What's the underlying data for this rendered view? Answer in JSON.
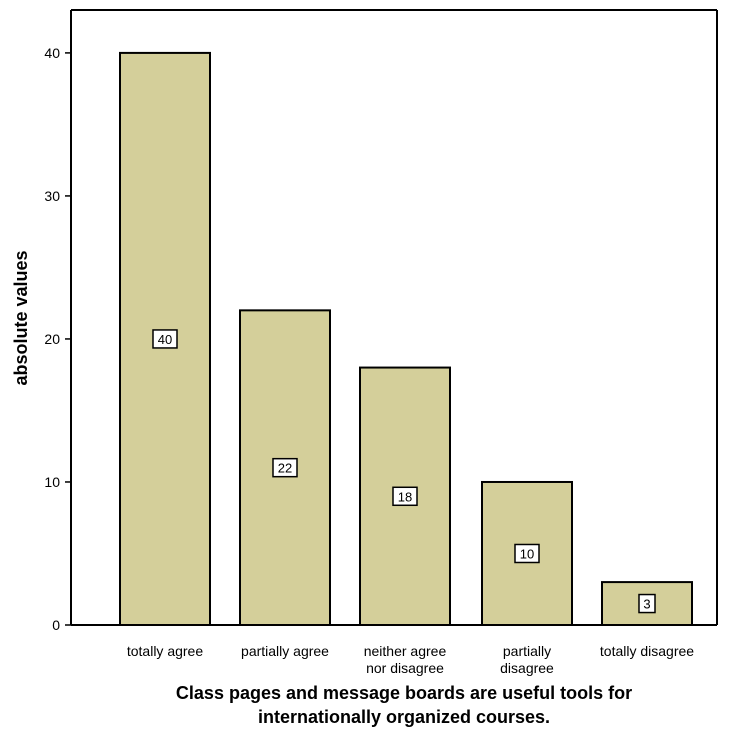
{
  "chart_data": {
    "type": "bar",
    "title": "",
    "xlabel": "Class pages and message boards are useful tools for internationally organized courses.",
    "ylabel": "absolute values",
    "categories": [
      "totally agree",
      "partially agree",
      "neither agree nor disagree",
      "partially disagree",
      "totally disagree"
    ],
    "values": [
      40,
      22,
      18,
      10,
      3
    ],
    "data_labels": [
      "40",
      "22",
      "18",
      "10",
      "3"
    ],
    "ylim": [
      0,
      43
    ],
    "yticks": [
      0,
      10,
      20,
      30,
      40
    ],
    "grid": false,
    "legend": "none",
    "bar_color": "#d4cf9a",
    "bar_edge_color": "#000000",
    "label_box_fill": "#ffffff"
  }
}
